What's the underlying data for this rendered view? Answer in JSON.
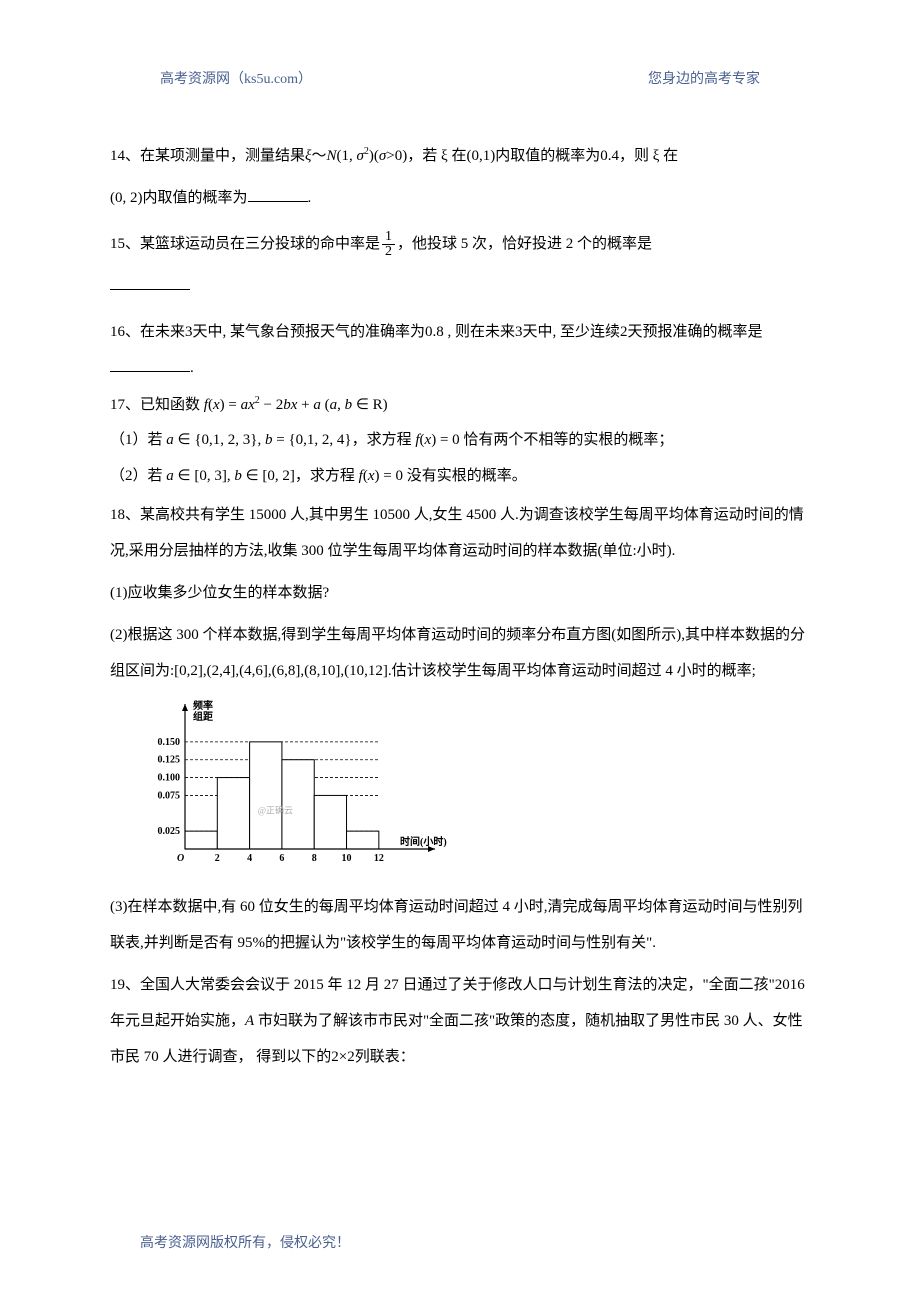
{
  "header": {
    "left": "高考资源网（ks5u.com）",
    "right": "您身边的高考专家"
  },
  "q14": {
    "prefix": "14、在某项测量中，测量结果",
    "formula": "ξ～N(1, σ²)(σ>0)",
    "mid1": "，若 ξ 在",
    "interval1": "(0,1)",
    "mid2": "内取值的概率为",
    "prob": "0.4",
    "mid3": "，则 ξ 在",
    "line2_interval": "(0, 2)",
    "line2_text": "内取值的概率为",
    "suffix": "."
  },
  "q15": {
    "prefix": "15、某篮球运动员在三分投球的命中率是",
    "frac_num": "1",
    "frac_den": "2",
    "mid": "，他投球 5 次，恰好投进 2 个的概率是"
  },
  "q16": {
    "text": "16、在未来3天中, 某气象台预报天气的准确率为0.8 , 则在未来3天中, 至少连续2天预报准确的概率是",
    "suffix": "."
  },
  "q17": {
    "line1_prefix": "17、已知函数 ",
    "line1_formula": "f(x) = ax² − 2bx + a (a, b ∈ R)",
    "part1_prefix": "（1）若 ",
    "part1_seta": "a ∈ {0,1, 2, 3}",
    "part1_setb": ", b = {0,1, 2, 4}",
    "part1_mid": "，求方程 ",
    "part1_fx": "f(x) = 0",
    "part1_suffix": " 恰有两个不相等的实根的概率；",
    "part2_prefix": "（2）若 ",
    "part2_seta": "a ∈ [0, 3], b ∈ [0, 2]",
    "part2_mid": "，求方程 ",
    "part2_fx": "f(x) = 0",
    "part2_suffix": " 没有实根的概率。"
  },
  "q18": {
    "intro": "18、某高校共有学生 15000 人,其中男生 10500 人,女生 4500 人.为调查该校学生每周平均体育运动时间的情况,采用分层抽样的方法,收集 300 位学生每周平均体育运动时间的样本数据(单位:小时).",
    "p1": "(1)应收集多少位女生的样本数据?",
    "p2": "(2)根据这 300 个样本数据,得到学生每周平均体育运动时间的频率分布直方图(如图所示),其中样本数据的分组区间为:[0,2],(2,4],(4,6],(6,8],(8,10],(10,12].估计该校学生每周平均体育运动时间超过 4 小时的概率;",
    "p3": "(3)在样本数据中,有 60 位女生的每周平均体育运动时间超过 4 小时,清完成每周平均体育运动时间与性别列联表,并判断是否有 95%的把握认为\"该校学生的每周平均体育运动时间与性别有关\"."
  },
  "chart": {
    "type": "histogram",
    "y_label_line1": "频率",
    "y_label_line2": "组距",
    "x_label": "时间(小时)",
    "x_ticks": [
      "2",
      "4",
      "6",
      "8",
      "10",
      "12"
    ],
    "y_ticks": [
      "0.025",
      "0.075",
      "0.100",
      "0.125",
      "0.150"
    ],
    "y_values": [
      0.025,
      0.075,
      0.1,
      0.125,
      0.15
    ],
    "bars": [
      {
        "x_start": 0,
        "x_end": 2,
        "height": 0.025
      },
      {
        "x_start": 2,
        "x_end": 4,
        "height": 0.1
      },
      {
        "x_start": 4,
        "x_end": 6,
        "height": 0.15
      },
      {
        "x_start": 6,
        "x_end": 8,
        "height": 0.125
      },
      {
        "x_start": 8,
        "x_end": 10,
        "height": 0.075
      },
      {
        "x_start": 10,
        "x_end": 12,
        "height": 0.025
      }
    ],
    "origin_label": "O",
    "watermark": "@正确云",
    "y_max": 0.175,
    "x_max": 13,
    "axis_color": "#000000",
    "grid_color": "#000000",
    "bar_fill": "#ffffff",
    "bar_stroke": "#000000",
    "font_size": 10,
    "label_bold": true
  },
  "q19": {
    "text": "19、全国人大常委会会议于 2015 年 12 月 27 日通过了关于修改人口与计划生育法的决定，\"全面二孩\"2016 年元旦起开始实施，",
    "city": "A",
    "text2": " 市妇联为了解该市市民对\"全面二孩\"政策的态度，随机抽取了男性市民 30 人、女性市民 70 人进行调查， 得到以下的2×2列联表："
  },
  "footer": "高考资源网版权所有，侵权必究！"
}
